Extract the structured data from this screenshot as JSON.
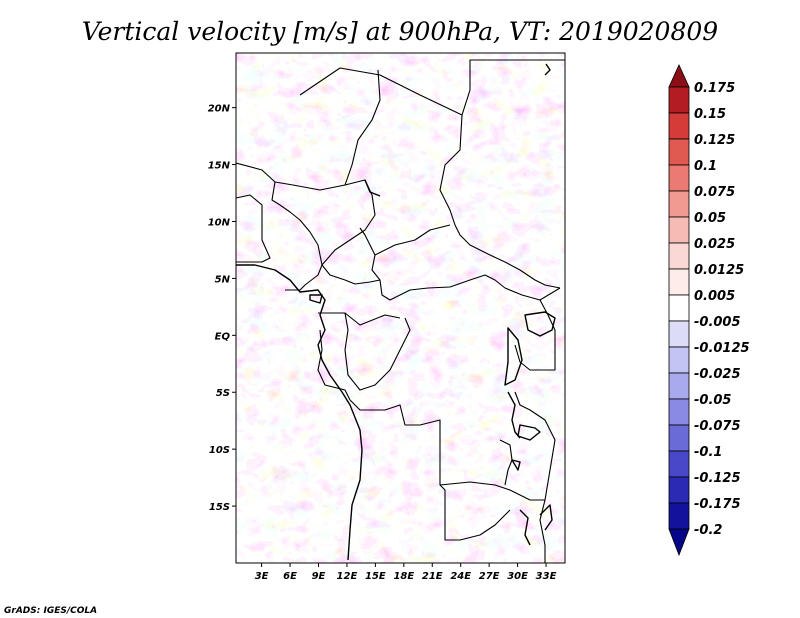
{
  "chart_data": {
    "type": "heatmap",
    "title": "Vertical velocity [m/s] at 900hPa, VT: 2019020809",
    "variable": "Vertical velocity",
    "units": "m/s",
    "level": "900hPa",
    "valid_time": "2019020809",
    "x_ticks": [
      "3E",
      "6E",
      "9E",
      "12E",
      "15E",
      "18E",
      "21E",
      "24E",
      "27E",
      "30E",
      "33E"
    ],
    "x_tick_values": [
      3,
      6,
      9,
      12,
      15,
      18,
      21,
      24,
      27,
      30,
      33
    ],
    "y_ticks": [
      "20N",
      "15N",
      "10N",
      "5N",
      "EQ",
      "5S",
      "10S",
      "15S"
    ],
    "y_tick_values": [
      20,
      15,
      10,
      5,
      0,
      -5,
      -10,
      -15
    ],
    "xlim": [
      0.3,
      35.0
    ],
    "ylim": [
      -20.0,
      24.8
    ],
    "colorbar": {
      "labels": [
        "0.175",
        "0.15",
        "0.125",
        "0.1",
        "0.075",
        "0.05",
        "0.025",
        "0.0125",
        "0.005",
        "-0.005",
        "-0.0125",
        "-0.025",
        "-0.05",
        "-0.075",
        "-0.1",
        "-0.125",
        "-0.175",
        "-0.2"
      ],
      "colors": [
        "#8b0f16",
        "#b31d22",
        "#d33c38",
        "#e05a52",
        "#eb7b72",
        "#f09a92",
        "#f6bbb5",
        "#fad8d5",
        "#fdecea",
        "#ffffff",
        "#dcdcf8",
        "#c3c3f4",
        "#a9a9ee",
        "#8a8ae4",
        "#6b6bd8",
        "#4848c8",
        "#2a2ab4",
        "#12129c",
        "#05058a"
      ]
    },
    "credit": "GrADS: IGES/COLA"
  }
}
